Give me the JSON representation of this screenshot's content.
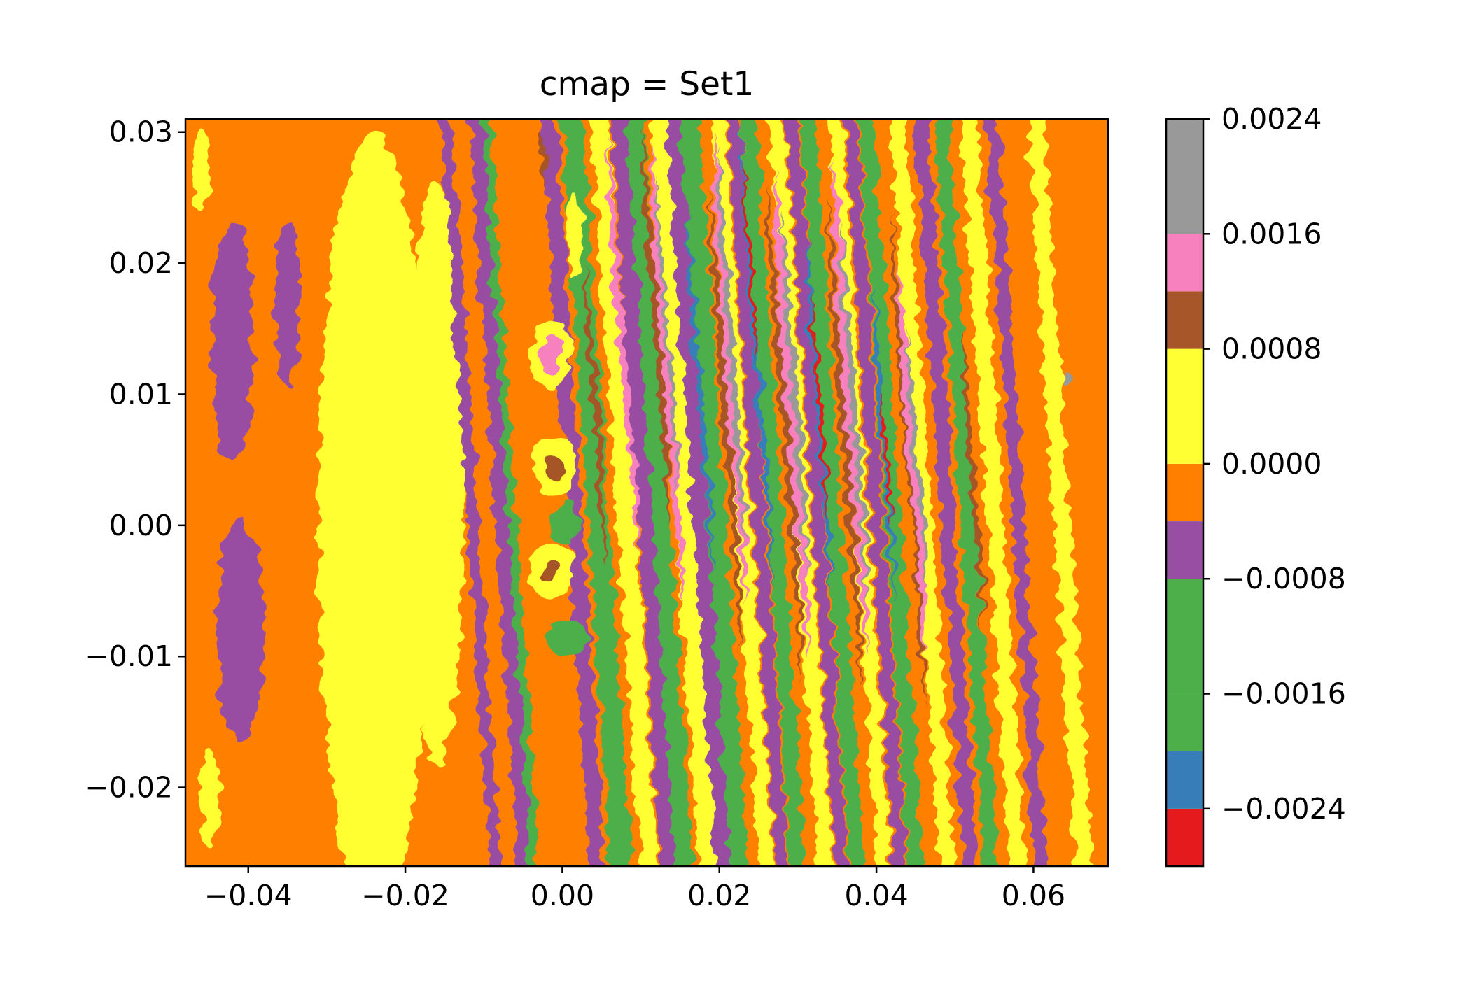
{
  "chart_data": {
    "type": "heatmap",
    "title": "cmap = Set1",
    "xlabel": "",
    "ylabel": "",
    "x_range": [
      -0.048,
      0.0695
    ],
    "y_range": [
      -0.026,
      0.031
    ],
    "x_ticks": [
      {
        "value": -0.04,
        "label": "−0.04"
      },
      {
        "value": -0.02,
        "label": "−0.02"
      },
      {
        "value": 0.0,
        "label": "0.00"
      },
      {
        "value": 0.02,
        "label": "0.02"
      },
      {
        "value": 0.04,
        "label": "0.04"
      },
      {
        "value": 0.06,
        "label": "0.06"
      }
    ],
    "y_ticks": [
      {
        "value": -0.02,
        "label": "−0.02"
      },
      {
        "value": -0.01,
        "label": "−0.01"
      },
      {
        "value": 0.0,
        "label": "0.00"
      },
      {
        "value": 0.01,
        "label": "0.01"
      },
      {
        "value": 0.02,
        "label": "0.02"
      },
      {
        "value": 0.03,
        "label": "0.03"
      }
    ],
    "colorbar": {
      "levels": [
        -0.0028,
        -0.0024,
        -0.002,
        -0.0016,
        -0.0012,
        -0.0008,
        -0.0004,
        0.0,
        0.0004,
        0.0008,
        0.0012,
        0.0016,
        0.002,
        0.0024
      ],
      "band_lower_bounds": [
        -0.0028,
        -0.0024,
        -0.002,
        -0.0016,
        -0.0008,
        -0.0004,
        0.0,
        0.0008,
        0.0012,
        0.0016
      ],
      "band_upper_bounds": [
        -0.0024,
        -0.002,
        -0.0016,
        -0.0008,
        -0.0004,
        0.0,
        0.0008,
        0.0012,
        0.0016,
        0.0024
      ],
      "band_colors": [
        "#e41a1c",
        "#377eb8",
        "#4daf4a",
        "#4daf4a",
        "#984ea3",
        "#ff7f00",
        "#ffff33",
        "#a65628",
        "#f781bf",
        "#999999"
      ],
      "tick_values": [
        -0.0024,
        -0.0016,
        -0.0008,
        0.0,
        0.0008,
        0.0016,
        0.0024
      ],
      "tick_labels": [
        "−0.0024",
        "−0.0016",
        "−0.0008",
        "0.0000",
        "0.0008",
        "0.0016",
        "0.0024"
      ]
    },
    "field_description": "Set1 contour fill: nearly vertical interference fringes increasing in amplitude to the right (x≈0.01–0.05), low-amplitude orange/yellow/purple texture on the left, three small oval lobes near x≈0.",
    "colors": {
      "red": "#e41a1c",
      "blue": "#377eb8",
      "green": "#4daf4a",
      "purple": "#984ea3",
      "orange": "#ff7f00",
      "yellow": "#ffff33",
      "brown": "#a65628",
      "pink": "#f781bf",
      "gray": "#999999"
    }
  }
}
